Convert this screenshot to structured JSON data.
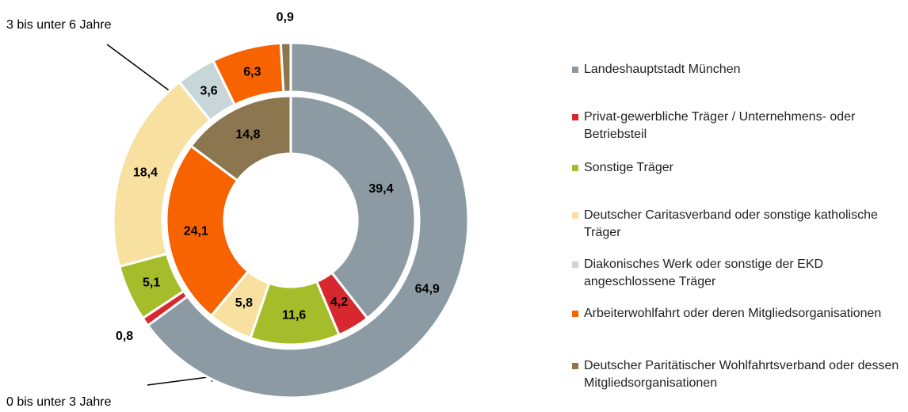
{
  "chart_data": {
    "type": "donut",
    "categories": [
      "Landeshauptstadt München",
      "Privat-gewerbliche Träger / Unternehmens- oder Betriebsteil",
      "Sonstige Träger",
      "Deutscher Caritasverband oder sonstige katholische Träger",
      "Diakonisches Werk oder sonstige der EKD angeschlossene Träger",
      "Arbeiterwohlfahrt oder deren Mitgliedsorganisationen",
      "Deutscher Paritätischer Wohlfahrtsverband oder dessen Mitgliedsorganisationen"
    ],
    "colors": [
      "#8c9ba3",
      "#d7282f",
      "#a5bd2a",
      "#f8e0a0",
      "#c7d6d8",
      "#f76300",
      "#8c7650"
    ],
    "series": [
      {
        "name": "3 bis unter 6 Jahre",
        "values": [
          64.9,
          0.8,
          5.1,
          18.4,
          3.6,
          6.3,
          0.9
        ],
        "value_labels": [
          "64,9",
          "0,8",
          "5,1",
          "18,4",
          "3,6",
          "6,3",
          "0,9"
        ]
      },
      {
        "name": "0 bis unter 3 Jahre",
        "values": [
          39.4,
          4.2,
          11.6,
          5.8,
          0,
          24.1,
          14.8
        ],
        "value_labels": [
          "39,4",
          "4,2",
          "11,6",
          "5,8",
          null,
          "24,1",
          "14,8"
        ]
      }
    ]
  }
}
